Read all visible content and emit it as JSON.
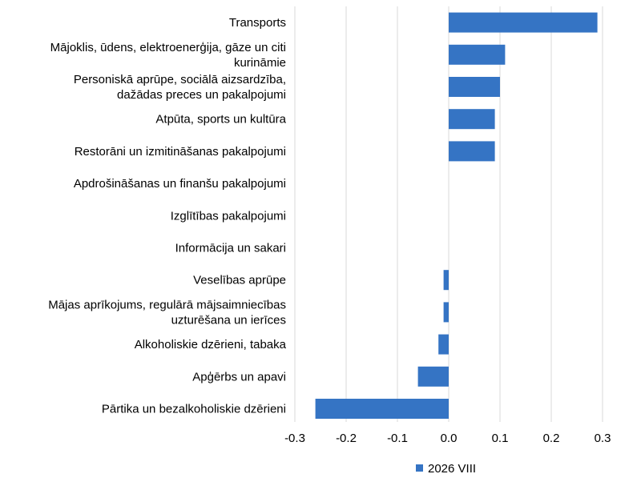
{
  "chart_data": {
    "type": "bar",
    "orientation": "horizontal",
    "categories": [
      "Transports",
      "Mājoklis, ūdens, elektroenerģija, gāze un citi kurināmie",
      "Personiskā aprūpe, sociālā aizsardzība, dažādas preces un pakalpojumi",
      "Atpūta, sports un kultūra",
      "Restorāni un izmitināšanas pakalpojumi",
      "Apdrošināšanas un finanšu pakalpojumi",
      "Izglītības pakalpojumi",
      "Informācija un sakari",
      "Veselības aprūpe",
      "Mājas aprīkojums, regulārā mājsaimniecības uzturēšana un ierīces",
      "Alkoholiskie dzērieni, tabaka",
      "Apģērbs un apavi",
      "Pārtika un bezalkoholiskie dzērieni"
    ],
    "category_lines": [
      [
        "Transports"
      ],
      [
        "Mājoklis, ūdens, elektroenerģija, gāze un citi",
        "kurināmie"
      ],
      [
        "Personiskā aprūpe, sociālā aizsardzība,",
        "dažādas preces un pakalpojumi"
      ],
      [
        "Atpūta, sports un kultūra"
      ],
      [
        "Restorāni un izmitināšanas pakalpojumi"
      ],
      [
        "Apdrošināšanas un finanšu pakalpojumi"
      ],
      [
        "Izglītības pakalpojumi"
      ],
      [
        "Informācija un sakari"
      ],
      [
        "Veselības aprūpe"
      ],
      [
        "Mājas aprīkojums, regulārā mājsaimniecības",
        "uzturēšana un ierīces"
      ],
      [
        "Alkoholiskie dzērieni, tabaka"
      ],
      [
        "Apģērbs un apavi"
      ],
      [
        "Pārtika un bezalkoholiskie dzērieni"
      ]
    ],
    "series": [
      {
        "name": "2026 VIII",
        "color": "#3574c4",
        "values": [
          0.29,
          0.11,
          0.1,
          0.09,
          0.09,
          0.0,
          0.0,
          0.0,
          -0.01,
          -0.01,
          -0.02,
          -0.06,
          -0.26
        ]
      }
    ],
    "xlim": [
      -0.3,
      0.3
    ],
    "xticks": [
      "-0.3",
      "-0.2",
      "-0.1",
      "0.0",
      "0.1",
      "0.2",
      "0.3"
    ],
    "xtick_values": [
      -0.3,
      -0.2,
      -0.1,
      0.0,
      0.1,
      0.2,
      0.3
    ],
    "grid": "vertical",
    "legend_position": "bottom-center",
    "colors": {
      "grid": "#d9d9d9",
      "text": "#000000"
    }
  }
}
